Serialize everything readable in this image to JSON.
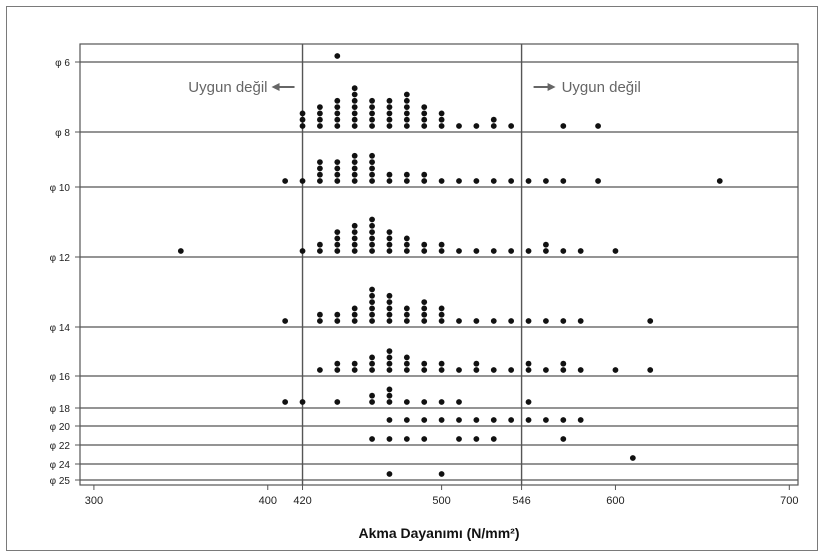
{
  "chart_data": {
    "type": "scatter",
    "title": "",
    "xlabel": "Akma Dayanımı (N/mm²)",
    "xlim": [
      292,
      705
    ],
    "x_ticks": [
      300,
      400,
      420,
      500,
      546,
      600,
      700
    ],
    "threshold_lines": [
      420,
      546
    ],
    "annotations": [
      {
        "text": "Uygun değil",
        "side": "left"
      },
      {
        "text": "Uygun değil",
        "side": "right"
      }
    ],
    "grid": "horizontal row separators",
    "point_style": "stacked dots, one dot per observation",
    "series": [
      {
        "name": "φ 6",
        "stacks": [
          [
            440,
            1
          ]
        ]
      },
      {
        "name": "φ 8",
        "stacks": [
          [
            420,
            3
          ],
          [
            430,
            4
          ],
          [
            440,
            5
          ],
          [
            450,
            7
          ],
          [
            460,
            5
          ],
          [
            470,
            5
          ],
          [
            480,
            6
          ],
          [
            490,
            4
          ],
          [
            500,
            3
          ],
          [
            510,
            1
          ],
          [
            520,
            1
          ],
          [
            530,
            2
          ],
          [
            540,
            1
          ],
          [
            570,
            1
          ],
          [
            590,
            1
          ]
        ]
      },
      {
        "name": "φ 10",
        "stacks": [
          [
            410,
            1
          ],
          [
            420,
            1
          ],
          [
            430,
            4
          ],
          [
            440,
            4
          ],
          [
            450,
            5
          ],
          [
            460,
            5
          ],
          [
            470,
            2
          ],
          [
            480,
            2
          ],
          [
            490,
            2
          ],
          [
            500,
            1
          ],
          [
            510,
            1
          ],
          [
            520,
            1
          ],
          [
            530,
            1
          ],
          [
            540,
            1
          ],
          [
            550,
            1
          ],
          [
            560,
            1
          ],
          [
            570,
            1
          ],
          [
            590,
            1
          ],
          [
            660,
            1
          ]
        ]
      },
      {
        "name": "φ 12",
        "stacks": [
          [
            350,
            1
          ],
          [
            420,
            1
          ],
          [
            430,
            2
          ],
          [
            440,
            4
          ],
          [
            450,
            5
          ],
          [
            460,
            6
          ],
          [
            470,
            4
          ],
          [
            480,
            3
          ],
          [
            490,
            2
          ],
          [
            500,
            2
          ],
          [
            510,
            1
          ],
          [
            520,
            1
          ],
          [
            530,
            1
          ],
          [
            540,
            1
          ],
          [
            550,
            1
          ],
          [
            560,
            2
          ],
          [
            570,
            1
          ],
          [
            580,
            1
          ],
          [
            600,
            1
          ]
        ]
      },
      {
        "name": "φ 14",
        "stacks": [
          [
            410,
            1
          ],
          [
            430,
            2
          ],
          [
            440,
            2
          ],
          [
            450,
            3
          ],
          [
            460,
            6
          ],
          [
            470,
            5
          ],
          [
            480,
            3
          ],
          [
            490,
            4
          ],
          [
            500,
            3
          ],
          [
            510,
            1
          ],
          [
            520,
            1
          ],
          [
            530,
            1
          ],
          [
            540,
            1
          ],
          [
            550,
            1
          ],
          [
            560,
            1
          ],
          [
            570,
            1
          ],
          [
            580,
            1
          ],
          [
            620,
            1
          ]
        ]
      },
      {
        "name": "φ 16",
        "stacks": [
          [
            430,
            1
          ],
          [
            440,
            2
          ],
          [
            450,
            2
          ],
          [
            460,
            3
          ],
          [
            470,
            4
          ],
          [
            480,
            3
          ],
          [
            490,
            2
          ],
          [
            500,
            2
          ],
          [
            510,
            1
          ],
          [
            520,
            2
          ],
          [
            530,
            1
          ],
          [
            540,
            1
          ],
          [
            550,
            2
          ],
          [
            560,
            1
          ],
          [
            570,
            2
          ],
          [
            580,
            1
          ],
          [
            600,
            1
          ],
          [
            620,
            1
          ]
        ]
      },
      {
        "name": "φ 18",
        "stacks": [
          [
            410,
            1
          ],
          [
            420,
            1
          ],
          [
            440,
            1
          ],
          [
            460,
            2
          ],
          [
            470,
            3
          ],
          [
            480,
            1
          ],
          [
            490,
            1
          ],
          [
            500,
            1
          ],
          [
            510,
            1
          ],
          [
            550,
            1
          ]
        ]
      },
      {
        "name": "φ 20",
        "stacks": [
          [
            470,
            1
          ],
          [
            480,
            1
          ],
          [
            490,
            1
          ],
          [
            500,
            1
          ],
          [
            510,
            1
          ],
          [
            520,
            1
          ],
          [
            530,
            1
          ],
          [
            540,
            1
          ],
          [
            550,
            1
          ],
          [
            560,
            1
          ],
          [
            570,
            1
          ],
          [
            580,
            1
          ]
        ]
      },
      {
        "name": "φ 22",
        "stacks": [
          [
            460,
            1
          ],
          [
            470,
            1
          ],
          [
            480,
            1
          ],
          [
            490,
            1
          ],
          [
            510,
            1
          ],
          [
            520,
            1
          ],
          [
            530,
            1
          ],
          [
            570,
            1
          ]
        ]
      },
      {
        "name": "φ 24",
        "stacks": [
          [
            610,
            1
          ]
        ]
      },
      {
        "name": "φ 25",
        "stacks": [
          [
            470,
            1
          ],
          [
            500,
            1
          ]
        ]
      }
    ]
  }
}
